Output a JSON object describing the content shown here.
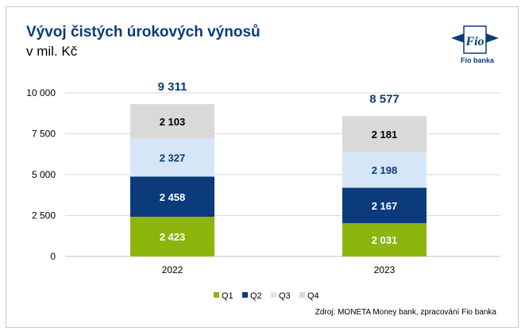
{
  "header": {
    "title": "Vývoj čistých úrokových výnosů",
    "subtitle": "v mil. Kč"
  },
  "logo": {
    "icon": "fio-flag-icon",
    "brand": "Fio",
    "text": "Fio banka"
  },
  "colors": {
    "Q1": "#8cb50e",
    "Q2": "#0b3b7a",
    "Q3": "#d6e6f7",
    "Q4": "#d9d9d9",
    "title": "#0b3b7a"
  },
  "chart_data": {
    "type": "bar",
    "stacked": true,
    "categories": [
      "2022",
      "2023"
    ],
    "series": [
      {
        "name": "Q1",
        "values": [
          2423,
          2031
        ]
      },
      {
        "name": "Q2",
        "values": [
          2458,
          2167
        ]
      },
      {
        "name": "Q3",
        "values": [
          2327,
          2198
        ]
      },
      {
        "name": "Q4",
        "values": [
          2103,
          2181
        ]
      }
    ],
    "value_labels": [
      [
        "2 423",
        "2 031"
      ],
      [
        "2 458",
        "2 167"
      ],
      [
        "2 327",
        "2 198"
      ],
      [
        "2 103",
        "2 181"
      ]
    ],
    "totals": [
      9311,
      8577
    ],
    "total_labels": [
      "9 311",
      "8 577"
    ],
    "ylim": [
      0,
      10000
    ],
    "yticks": [
      0,
      2500,
      5000,
      7500,
      10000
    ],
    "ytick_labels": [
      "0",
      "2 500",
      "5 000",
      "7 500",
      "10 000"
    ],
    "grid": true,
    "legend": "bottom-center"
  },
  "source": "Zdroj: MONETA Money bank, zpracování Fio banka"
}
